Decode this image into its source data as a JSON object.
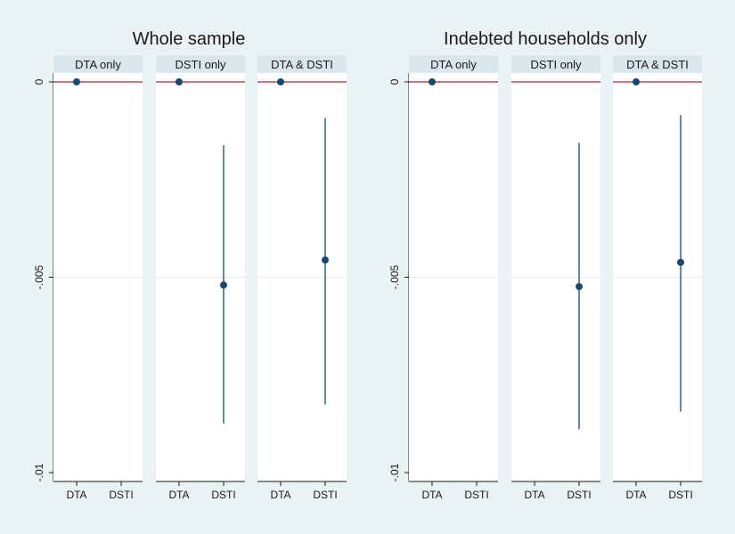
{
  "chart_data": [
    {
      "type": "scatter",
      "title": "Whole sample",
      "ylim": [
        -0.01,
        0
      ],
      "yticks": [
        0,
        -0.005,
        -0.01
      ],
      "ytick_labels": [
        "0",
        "-.005",
        "-.01"
      ],
      "reference_line": 0,
      "reference_color": "#a0243c",
      "point_color": "#1a476f",
      "panels": [
        {
          "label": "DTA only",
          "categories": [
            "DTA",
            "DSTI"
          ],
          "points": [
            {
              "category": "DTA",
              "estimate": 0,
              "ci_low": 0,
              "ci_high": 0
            }
          ]
        },
        {
          "label": "DSTI only",
          "categories": [
            "DTA",
            "DSTI"
          ],
          "points": [
            {
              "category": "DTA",
              "estimate": 0,
              "ci_low": 0,
              "ci_high": 0
            },
            {
              "category": "DSTI",
              "estimate": -0.0052,
              "ci_low": -0.00875,
              "ci_high": -0.00162
            }
          ]
        },
        {
          "label": "DTA & DSTI",
          "categories": [
            "DTA",
            "DSTI"
          ],
          "points": [
            {
              "category": "DTA",
              "estimate": 0,
              "ci_low": 0,
              "ci_high": 0
            },
            {
              "category": "DSTI",
              "estimate": -0.00456,
              "ci_low": -0.00826,
              "ci_high": -0.00093
            }
          ]
        }
      ]
    },
    {
      "type": "scatter",
      "title": "Indebted households only",
      "ylim": [
        -0.01,
        0
      ],
      "yticks": [
        0,
        -0.005,
        -0.01
      ],
      "ytick_labels": [
        "0",
        "-.005",
        "-.01"
      ],
      "reference_line": 0,
      "reference_color": "#a0243c",
      "point_color": "#1a476f",
      "panels": [
        {
          "label": "DTA only",
          "categories": [
            "DTA",
            "DSTI"
          ],
          "points": [
            {
              "category": "DTA",
              "estimate": 0,
              "ci_low": 0,
              "ci_high": 0
            }
          ]
        },
        {
          "label": "DSTI only",
          "categories": [
            "DTA",
            "DSTI"
          ],
          "points": [
            {
              "category": "DSTI",
              "estimate": -0.00524,
              "ci_low": -0.00889,
              "ci_high": -0.00156
            }
          ]
        },
        {
          "label": "DTA & DSTI",
          "categories": [
            "DTA",
            "DSTI"
          ],
          "points": [
            {
              "category": "DTA",
              "estimate": 0,
              "ci_low": 0,
              "ci_high": 0
            },
            {
              "category": "DSTI",
              "estimate": -0.00462,
              "ci_low": -0.00844,
              "ci_high": -0.00085
            }
          ]
        }
      ]
    }
  ]
}
